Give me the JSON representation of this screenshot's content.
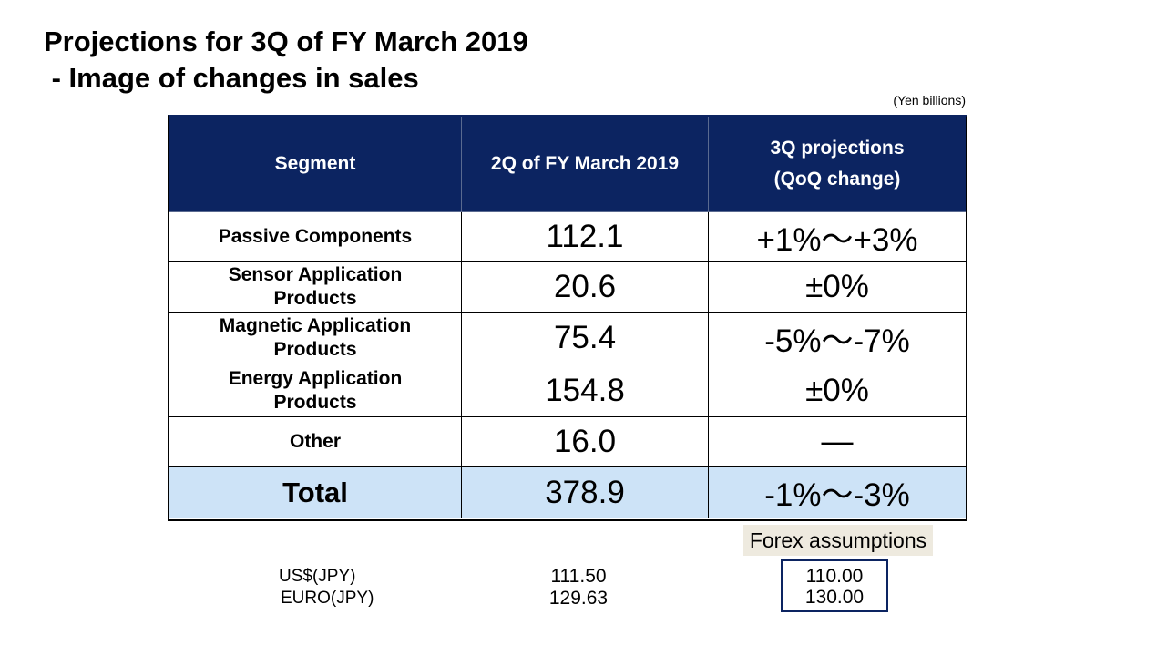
{
  "title": "Projections for 3Q of FY March 2019\n - Image of changes in sales",
  "unit_note": "(Yen billions)",
  "table": {
    "headers": [
      "Segment",
      "2Q of FY March 2019",
      "3Q projections\n(QoQ change)"
    ],
    "rows": [
      {
        "segment": "Passive Components",
        "value": "112.1",
        "projection": "+1%～+3%"
      },
      {
        "segment": "Sensor Application\nProducts",
        "value": "20.6",
        "projection": "±0%"
      },
      {
        "segment": "Magnetic Application\nProducts",
        "value": "75.4",
        "projection": "-5%～-7%"
      },
      {
        "segment": "Energy Application\nProducts",
        "value": "154.8",
        "projection": "±0%"
      },
      {
        "segment": "Other",
        "value": "16.0",
        "projection": "―"
      }
    ],
    "total": {
      "segment": "Total",
      "value": "378.9",
      "projection": "-1%～-3%"
    }
  },
  "forex": {
    "header": "Forex assumptions",
    "labels": [
      "US$(JPY)",
      "EURO(JPY)"
    ],
    "current": [
      "111.50",
      "129.63"
    ],
    "assumed": [
      "110.00",
      "130.00"
    ]
  },
  "colors": {
    "header_bg": "#0c2461",
    "total_row_bg": "#cde3f7",
    "forex_header_bg": "#eeeadf"
  }
}
